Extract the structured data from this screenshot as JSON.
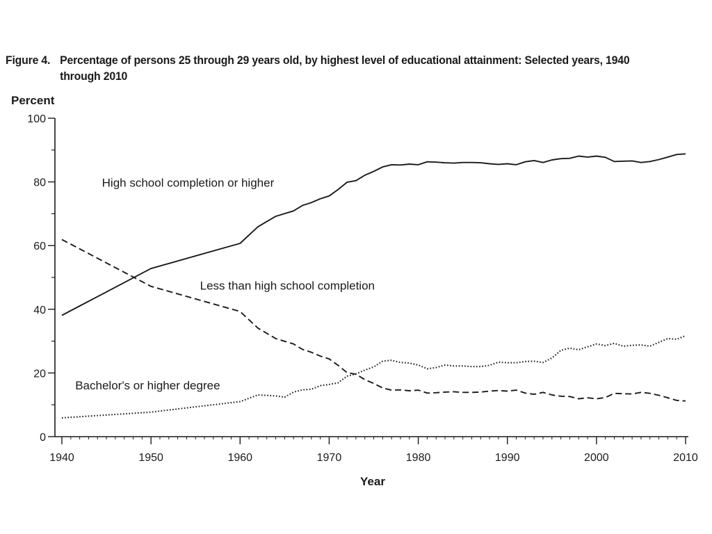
{
  "figure": {
    "number": "Figure 4.",
    "title": "Percentage of persons 25 through 29 years old, by highest level of educational attainment: Selected years, 1940 through 2010"
  },
  "chart_data": {
    "type": "line",
    "title": "Percentage of persons 25 through 29 years old, by highest level of educational attainment: Selected years, 1940 through 2010",
    "xlabel": "Year",
    "ylabel": "Percent",
    "xlim": [
      1940,
      2010
    ],
    "ylim": [
      0,
      100
    ],
    "xticks": [
      1940,
      1950,
      1960,
      1970,
      1980,
      1990,
      2000,
      2010
    ],
    "yticks": [
      0,
      20,
      40,
      60,
      80,
      100
    ],
    "grid": false,
    "legend": "none",
    "series": [
      {
        "name": "High school completion or higher",
        "style": "solid",
        "x": [
          1940,
          1950,
          1960,
          1962,
          1964,
          1966,
          1967,
          1968,
          1969,
          1970,
          1971,
          1972,
          1973,
          1974,
          1975,
          1976,
          1977,
          1978,
          1979,
          1980,
          1981,
          1982,
          1983,
          1984,
          1985,
          1986,
          1987,
          1988,
          1989,
          1990,
          1991,
          1992,
          1993,
          1994,
          1995,
          1996,
          1997,
          1998,
          1999,
          2000,
          2001,
          2002,
          2003,
          2004,
          2005,
          2006,
          2007,
          2008,
          2009,
          2010
        ],
        "values": [
          38.1,
          52.8,
          60.7,
          65.9,
          69.2,
          70.9,
          72.6,
          73.5,
          74.7,
          75.6,
          77.6,
          79.9,
          80.4,
          82.1,
          83.3,
          84.7,
          85.4,
          85.3,
          85.6,
          85.4,
          86.3,
          86.2,
          86.0,
          85.9,
          86.1,
          86.1,
          86.0,
          85.7,
          85.5,
          85.7,
          85.4,
          86.3,
          86.7,
          86.1,
          86.9,
          87.3,
          87.4,
          88.1,
          87.8,
          88.1,
          87.7,
          86.4,
          86.5,
          86.6,
          86.1,
          86.4,
          87.0,
          87.8,
          88.6,
          88.8
        ]
      },
      {
        "name": "Less than high school completion",
        "style": "dashed",
        "x": [
          1940,
          1950,
          1960,
          1962,
          1964,
          1966,
          1967,
          1968,
          1969,
          1970,
          1971,
          1972,
          1973,
          1974,
          1975,
          1976,
          1977,
          1978,
          1979,
          1980,
          1981,
          1982,
          1983,
          1984,
          1985,
          1986,
          1987,
          1988,
          1989,
          1990,
          1991,
          1992,
          1993,
          1994,
          1995,
          1996,
          1997,
          1998,
          1999,
          2000,
          2001,
          2002,
          2003,
          2004,
          2005,
          2006,
          2007,
          2008,
          2009,
          2010
        ],
        "values": [
          61.9,
          47.2,
          39.3,
          34.1,
          30.8,
          29.1,
          27.4,
          26.5,
          25.3,
          24.4,
          22.4,
          20.1,
          19.6,
          17.9,
          16.7,
          15.3,
          14.6,
          14.7,
          14.4,
          14.6,
          13.7,
          13.8,
          14.0,
          14.1,
          13.9,
          13.9,
          14.0,
          14.3,
          14.5,
          14.3,
          14.6,
          13.7,
          13.3,
          13.9,
          13.1,
          12.7,
          12.6,
          11.9,
          12.2,
          11.9,
          12.3,
          13.6,
          13.5,
          13.4,
          13.9,
          13.6,
          13.0,
          12.2,
          11.4,
          11.2
        ]
      },
      {
        "name": "Bachelor's or higher degree",
        "style": "dotted",
        "x": [
          1940,
          1950,
          1960,
          1962,
          1964,
          1965,
          1966,
          1967,
          1968,
          1969,
          1970,
          1971,
          1972,
          1973,
          1974,
          1975,
          1976,
          1977,
          1978,
          1979,
          1980,
          1981,
          1982,
          1983,
          1984,
          1985,
          1986,
          1987,
          1988,
          1989,
          1990,
          1991,
          1992,
          1993,
          1994,
          1995,
          1996,
          1997,
          1998,
          1999,
          2000,
          2001,
          2002,
          2003,
          2004,
          2005,
          2006,
          2007,
          2008,
          2009,
          2010
        ],
        "values": [
          5.9,
          7.7,
          11.0,
          13.1,
          12.8,
          12.4,
          14.0,
          14.7,
          14.9,
          16.0,
          16.4,
          16.9,
          19.0,
          19.7,
          20.9,
          21.9,
          23.7,
          24.0,
          23.3,
          23.1,
          22.5,
          21.3,
          21.7,
          22.5,
          22.2,
          22.2,
          22.0,
          22.0,
          22.4,
          23.4,
          23.2,
          23.2,
          23.6,
          23.7,
          23.3,
          24.7,
          27.1,
          27.8,
          27.3,
          28.2,
          29.1,
          28.6,
          29.3,
          28.4,
          28.7,
          28.8,
          28.4,
          29.6,
          30.8,
          30.6,
          31.7
        ]
      }
    ],
    "annotations": [
      {
        "text": "High school completion or higher",
        "x": 1944.5,
        "y": 78.5,
        "anchor": "start"
      },
      {
        "text": "Less than high school completion",
        "x": 1955.5,
        "y": 46.2,
        "anchor": "start"
      },
      {
        "text": "Bachelor's or higher degree",
        "x": 1941.5,
        "y": 14.8,
        "anchor": "start"
      }
    ]
  }
}
